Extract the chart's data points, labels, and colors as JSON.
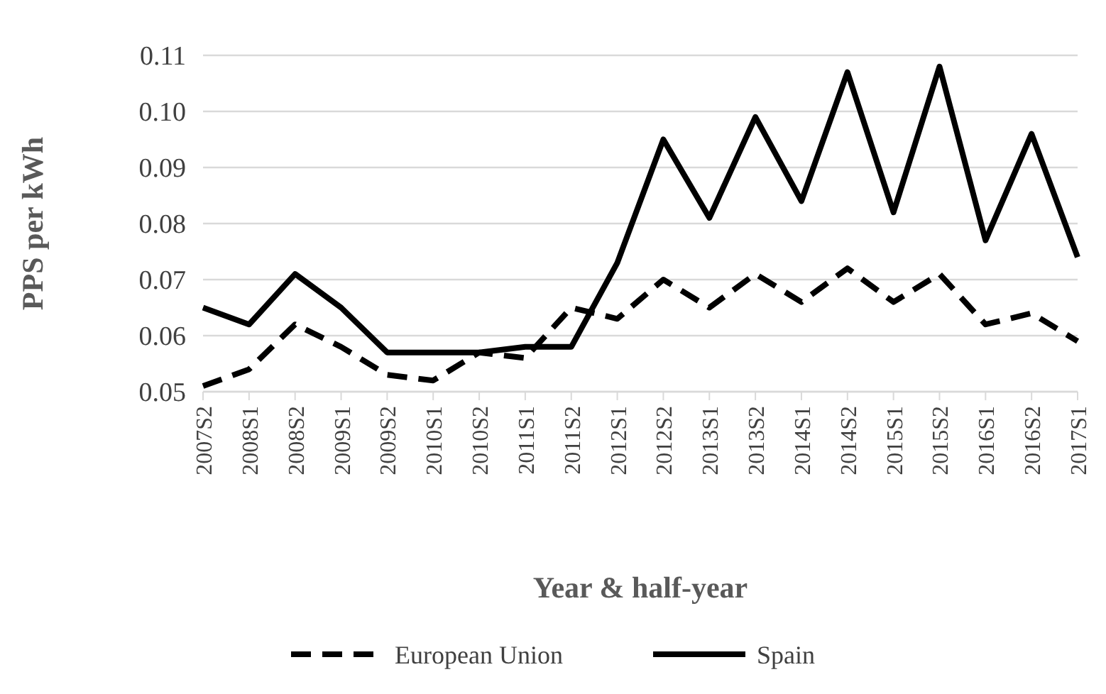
{
  "chart_data": {
    "type": "line",
    "xlabel": "Year & half-year",
    "ylabel": "PPS per kWh",
    "categories": [
      "2007S2",
      "2008S1",
      "2008S2",
      "2009S1",
      "2009S2",
      "2010S1",
      "2010S2",
      "2011S1",
      "2011S2",
      "2012S1",
      "2012S2",
      "2013S1",
      "2013S2",
      "2014S1",
      "2014S2",
      "2015S1",
      "2015S2",
      "2016S1",
      "2016S2",
      "2017S1"
    ],
    "series": [
      {
        "name": "European Union",
        "color": "#000000",
        "line_style": "dashed",
        "values": [
          0.051,
          0.054,
          0.062,
          0.058,
          0.053,
          0.052,
          0.057,
          0.056,
          0.065,
          0.063,
          0.07,
          0.065,
          0.071,
          0.066,
          0.072,
          0.066,
          0.071,
          0.062,
          0.064,
          0.059
        ]
      },
      {
        "name": "Spain",
        "color": "#000000",
        "line_style": "solid",
        "values": [
          0.065,
          0.062,
          0.071,
          0.065,
          0.057,
          0.057,
          0.057,
          0.058,
          0.058,
          0.073,
          0.095,
          0.081,
          0.099,
          0.084,
          0.107,
          0.082,
          0.108,
          0.077,
          0.096,
          0.074
        ]
      }
    ],
    "ylim": [
      0.05,
      0.11
    ],
    "yticks": [
      {
        "value": 0.05,
        "label": "0.05"
      },
      {
        "value": 0.06,
        "label": "0.06"
      },
      {
        "value": 0.07,
        "label": "0.07"
      },
      {
        "value": 0.08,
        "label": "0.08"
      },
      {
        "value": 0.09,
        "label": "0.09"
      },
      {
        "value": 0.1,
        "label": "0.10"
      },
      {
        "value": 0.11,
        "label": "0.11"
      }
    ],
    "grid": "y",
    "legend": "bottom"
  }
}
